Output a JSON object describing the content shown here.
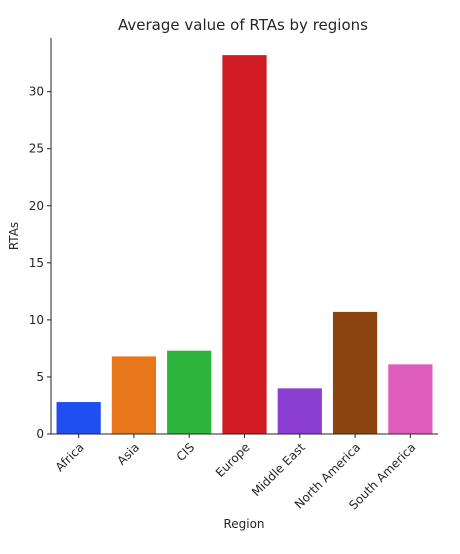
{
  "chart_data": {
    "type": "bar",
    "title": "Average value of RTAs by regions",
    "xlabel": "Region",
    "ylabel": "RTAs",
    "categories": [
      "Africa",
      "Asia",
      "CIS",
      "Europe",
      "Middle East",
      "North America",
      "South America"
    ],
    "values": [
      2.8,
      6.8,
      7.3,
      33.2,
      4.0,
      10.7,
      6.1
    ],
    "colors": [
      "#1f4ff0",
      "#e8771c",
      "#2cb53c",
      "#d01b22",
      "#8b3ed1",
      "#8b4410",
      "#de5cbd"
    ],
    "ylim": [
      0,
      34.7
    ],
    "yticks": [
      0,
      5,
      10,
      15,
      20,
      25,
      30
    ],
    "grid": false,
    "legend": "none"
  }
}
